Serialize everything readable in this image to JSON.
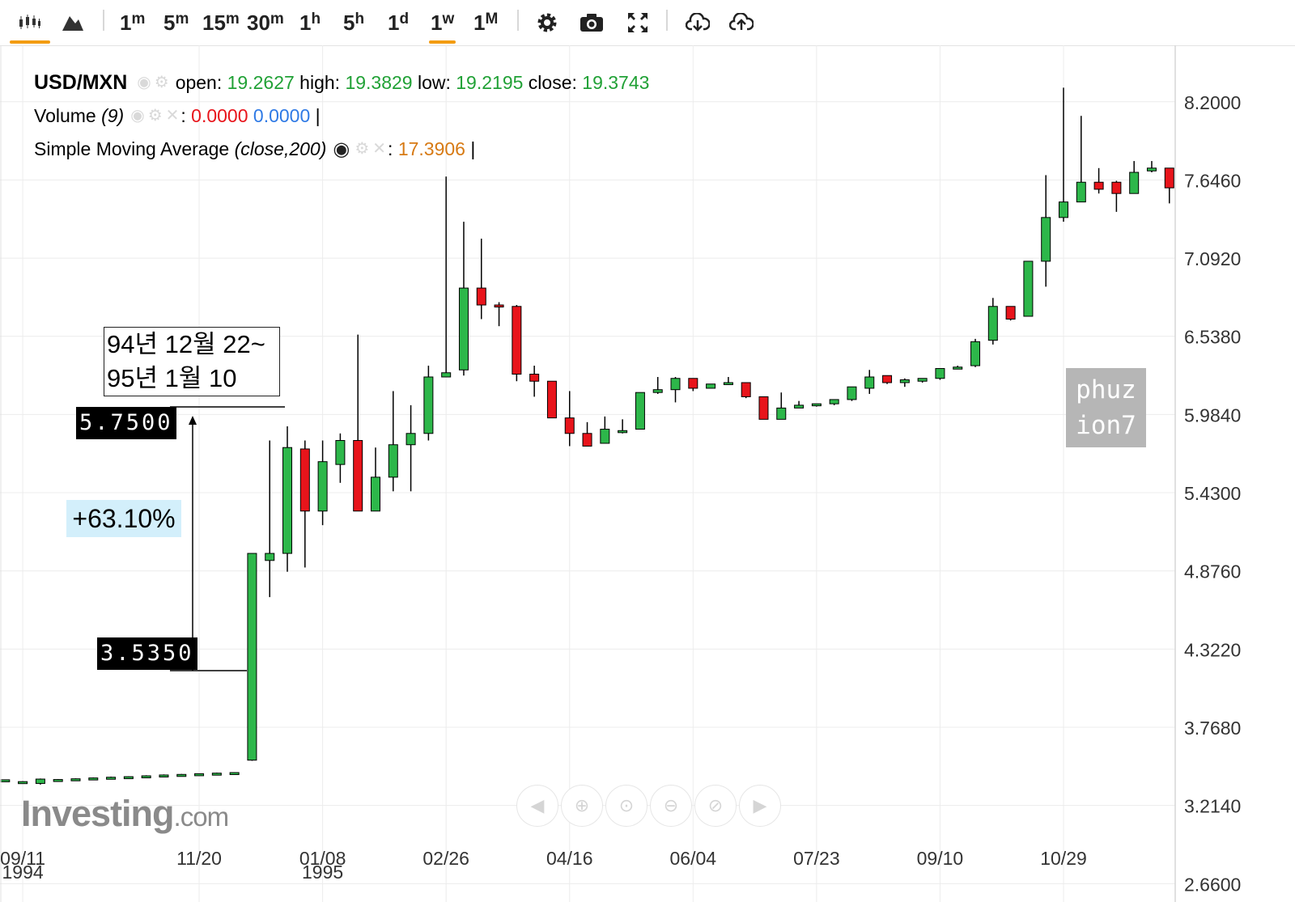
{
  "toolbar": {
    "chart_type_icons": [
      "candlestick-icon",
      "area-chart-icon"
    ],
    "intervals": [
      {
        "num": "1",
        "unit": "m"
      },
      {
        "num": "5",
        "unit": "m"
      },
      {
        "num": "15",
        "unit": "m"
      },
      {
        "num": "30",
        "unit": "m"
      },
      {
        "num": "1",
        "unit": "h"
      },
      {
        "num": "5",
        "unit": "h"
      },
      {
        "num": "1",
        "unit": "d"
      },
      {
        "num": "1",
        "unit": "w"
      },
      {
        "num": "1",
        "unit": "M"
      }
    ],
    "active_interval": "1w",
    "tool_icons": [
      "gear-icon",
      "camera-icon",
      "fullscreen-icon",
      "download-icon",
      "upload-icon"
    ]
  },
  "legend": {
    "symbol": "USD/MXN",
    "open_label": "open:",
    "open": "19.2627",
    "high_label": "high:",
    "high": "19.3829",
    "low_label": "low:",
    "low": "19.2195",
    "close_label": "close:",
    "close": "19.3743",
    "volume_label": "Volume",
    "volume_param": "(9)",
    "volume_val1": "0.0000",
    "volume_val2": "0.0000",
    "sma_label": "Simple Moving Average",
    "sma_param": "(close,200)",
    "sma_val": "17.3906",
    "separator": ":",
    "pipe": "|"
  },
  "annotations": {
    "period_line1": "94년 12월 22~",
    "period_line2": "95년 1월 10",
    "high_tag": "5.7500",
    "low_tag": "3.5350",
    "change": "+63.10%"
  },
  "watermark": {
    "line1": "phuz",
    "line2": "ion7"
  },
  "logo": {
    "main": "Investing",
    "suffix": ".com"
  },
  "nav_icons": [
    "scroll-left-icon",
    "zoom-in-icon",
    "zoom-reset-icon",
    "zoom-out-icon",
    "zoom-fit-icon",
    "scroll-right-icon"
  ],
  "colors": {
    "up": "#2db74a",
    "down": "#e8141b",
    "grid": "#ececec",
    "axis_text": "#333333",
    "accent": "#f39c12"
  },
  "chart_data": {
    "type": "candlestick",
    "series_name": "USD/MXN",
    "y_ticks": [
      "8.2000",
      "7.6460",
      "7.0920",
      "6.5380",
      "5.9840",
      "5.4300",
      "4.8760",
      "4.3220",
      "3.7680",
      "3.2140",
      "2.6600"
    ],
    "ylim": [
      2.53,
      8.6
    ],
    "x_ticks": [
      {
        "label": "09/11",
        "sublabel": "1994",
        "week": 1
      },
      {
        "label": "11/20",
        "sublabel": "",
        "week": 11
      },
      {
        "label": "01/08",
        "sublabel": "1995",
        "week": 18
      },
      {
        "label": "02/26",
        "sublabel": "",
        "week": 25
      },
      {
        "label": "04/16",
        "sublabel": "",
        "week": 32
      },
      {
        "label": "06/04",
        "sublabel": "",
        "week": 39
      },
      {
        "label": "07/23",
        "sublabel": "",
        "week": 46
      },
      {
        "label": "09/10",
        "sublabel": "",
        "week": 53
      },
      {
        "label": "10/29",
        "sublabel": "",
        "week": 60
      }
    ],
    "candles": [
      [
        0.0,
        3.393,
        3.396,
        3.389,
        3.397
      ],
      [
        1.0,
        3.38,
        3.383,
        3.377,
        3.386
      ],
      [
        2.0,
        3.37,
        3.401,
        3.362,
        3.405
      ],
      [
        3.0,
        3.392,
        3.398,
        3.389,
        3.401
      ],
      [
        4.0,
        3.398,
        3.403,
        3.395,
        3.406
      ],
      [
        5.0,
        3.404,
        3.409,
        3.401,
        3.412
      ],
      [
        6.0,
        3.409,
        3.414,
        3.406,
        3.418
      ],
      [
        7.0,
        3.414,
        3.418,
        3.411,
        3.421
      ],
      [
        8.0,
        3.418,
        3.424,
        3.415,
        3.428
      ],
      [
        9.0,
        3.425,
        3.43,
        3.422,
        3.434
      ],
      [
        10.0,
        3.43,
        3.434,
        3.426,
        3.437
      ],
      [
        11.0,
        3.435,
        3.439,
        3.432,
        3.441
      ],
      [
        12.0,
        3.44,
        3.443,
        3.437,
        3.446
      ],
      [
        13.0,
        3.444,
        3.447,
        3.441,
        3.45
      ],
      [
        14.0,
        3.535,
        5.0,
        3.53,
        5.0
      ],
      [
        15.0,
        4.95,
        5.0,
        4.69,
        5.8
      ],
      [
        16.0,
        5.0,
        5.75,
        4.87,
        5.9
      ],
      [
        17.0,
        5.74,
        5.3,
        4.9,
        5.8
      ],
      [
        18.0,
        5.3,
        5.65,
        5.2,
        5.8
      ],
      [
        19.0,
        5.63,
        5.8,
        5.5,
        5.85
      ],
      [
        20.0,
        5.8,
        5.3,
        5.3,
        6.55
      ],
      [
        21.0,
        5.3,
        5.54,
        5.3,
        5.75
      ],
      [
        22.0,
        5.54,
        5.77,
        5.44,
        6.15
      ],
      [
        23.0,
        5.77,
        5.85,
        5.44,
        6.05
      ],
      [
        24.0,
        5.85,
        6.25,
        5.8,
        6.33
      ],
      [
        25.0,
        6.25,
        6.28,
        6.26,
        7.67
      ],
      [
        26.0,
        6.3,
        6.88,
        6.26,
        7.35
      ],
      [
        27.0,
        6.88,
        6.76,
        6.66,
        7.23
      ],
      [
        28.0,
        6.76,
        6.75,
        6.61,
        6.78
      ],
      [
        29.0,
        6.75,
        6.27,
        6.22,
        6.76
      ],
      [
        30.0,
        6.27,
        6.22,
        6.11,
        6.33
      ],
      [
        31.0,
        6.22,
        5.96,
        5.96,
        6.22
      ],
      [
        32.0,
        5.96,
        5.85,
        5.76,
        6.15
      ],
      [
        33.0,
        5.85,
        5.76,
        5.76,
        5.93
      ],
      [
        34.0,
        5.78,
        5.88,
        5.78,
        5.97
      ],
      [
        35.0,
        5.87,
        5.87,
        5.85,
        5.95
      ],
      [
        36.0,
        5.88,
        6.14,
        5.88,
        6.14
      ],
      [
        37.0,
        6.14,
        6.16,
        6.13,
        6.25
      ],
      [
        38.0,
        6.16,
        6.24,
        6.07,
        6.25
      ],
      [
        39.0,
        6.24,
        6.17,
        6.15,
        6.24
      ],
      [
        40.0,
        6.17,
        6.2,
        6.18,
        6.2
      ],
      [
        41.0,
        6.21,
        6.21,
        6.2,
        6.25
      ],
      [
        42.0,
        6.21,
        6.11,
        6.1,
        6.21
      ],
      [
        43.0,
        6.11,
        5.95,
        5.95,
        6.11
      ],
      [
        44.0,
        5.95,
        6.03,
        5.95,
        6.14
      ],
      [
        45.0,
        6.03,
        6.05,
        6.04,
        6.08
      ],
      [
        46.0,
        6.05,
        6.06,
        6.04,
        6.06
      ],
      [
        47.0,
        6.06,
        6.09,
        6.05,
        6.09
      ],
      [
        48.0,
        6.09,
        6.18,
        6.08,
        6.18
      ],
      [
        49.0,
        6.17,
        6.25,
        6.13,
        6.3
      ],
      [
        50.0,
        6.26,
        6.21,
        6.2,
        6.26
      ],
      [
        51.0,
        6.21,
        6.23,
        6.18,
        6.24
      ],
      [
        52.0,
        6.22,
        6.24,
        6.21,
        6.24
      ],
      [
        53.0,
        6.24,
        6.31,
        6.23,
        6.31
      ],
      [
        54.0,
        6.31,
        6.32,
        6.31,
        6.33
      ],
      [
        55.0,
        6.33,
        6.5,
        6.32,
        6.52
      ],
      [
        56.0,
        6.51,
        6.75,
        6.48,
        6.81
      ],
      [
        57.0,
        6.75,
        6.66,
        6.65,
        6.75
      ],
      [
        58.0,
        6.68,
        7.07,
        6.68,
        7.07
      ],
      [
        59.0,
        7.07,
        7.38,
        6.89,
        7.68
      ],
      [
        60.0,
        7.38,
        7.49,
        7.35,
        8.3
      ],
      [
        61.0,
        7.49,
        7.63,
        7.52,
        8.1
      ],
      [
        62.0,
        7.63,
        7.58,
        7.55,
        7.73
      ],
      [
        63.0,
        7.63,
        7.55,
        7.42,
        7.64
      ],
      [
        64.0,
        7.55,
        7.7,
        7.55,
        7.78
      ],
      [
        65.0,
        7.71,
        7.73,
        7.7,
        7.78
      ],
      [
        66.0,
        7.73,
        7.59,
        7.48,
        7.73
      ]
    ],
    "sma_visible": true
  }
}
